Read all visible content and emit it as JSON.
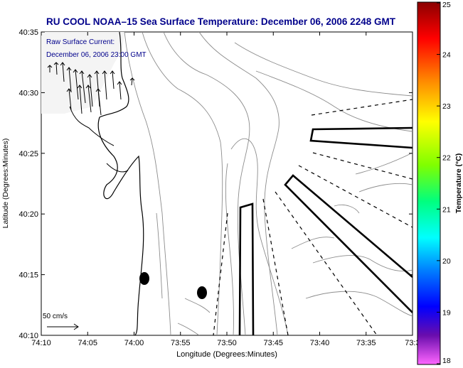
{
  "title": "RU COOL  NOAA–15  Sea Surface Temperature:  December 06, 2006 2248 GMT",
  "current_label_1": "Raw Surface Current:",
  "current_label_2": "December 06, 2006 23:00 GMT",
  "scale_label": "50 cm/s",
  "xlabel": "Longitude (Degrees:Minutes)",
  "ylabel": "Latitude (Degrees:Minutes)",
  "colorbar_label": "Temperature (°C)",
  "x_ticks": [
    "74:10",
    "74:05",
    "74:00",
    "73:55",
    "73:50",
    "73:45",
    "73:40",
    "73:35",
    "73:3"
  ],
  "y_ticks": [
    "40:35",
    "40:30",
    "40:25",
    "40:20",
    "40:15",
    "40:10"
  ],
  "colorbar_ticks": [
    "25",
    "24",
    "23",
    "22",
    "21",
    "20",
    "19",
    "18"
  ],
  "colors": {
    "title_text": "#00008b",
    "coastline": "#000000",
    "contour": "#8c8c8c",
    "colorbar_gradient": [
      "#8b0000",
      "#ff0000",
      "#ff8c00",
      "#ffff00",
      "#7fff00",
      "#00ff7f",
      "#00ffff",
      "#007fff",
      "#0000ff",
      "#4b0082",
      "#ff66ff"
    ]
  }
}
